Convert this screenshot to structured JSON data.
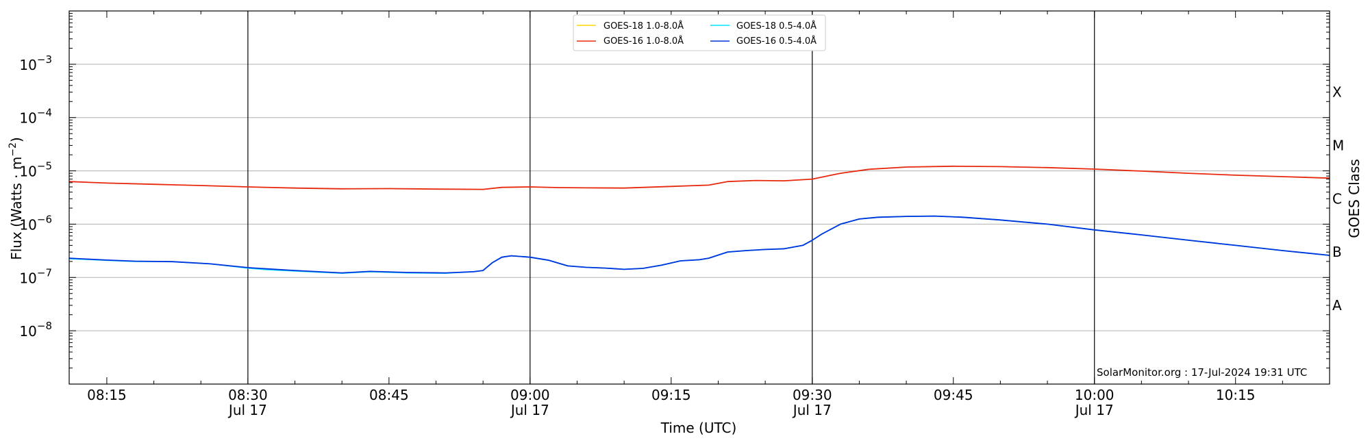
{
  "chart_data": {
    "type": "line",
    "xlabel": "Time (UTC)",
    "ylabel_text": "Flux (Watts · m",
    "ylabel_sup": "−2",
    "ylabel_close": ")",
    "right_label": "GOES Class",
    "y_scale": "log",
    "ylim": [
      1e-09,
      0.01
    ],
    "x_range_minutes": [
      491,
      1761
    ],
    "x_domain": [
      "08:11",
      "10:25"
    ],
    "grid": "horizontal at each decade",
    "legend_position": "top-center",
    "credit": "SolarMonitor.org : 17-Jul-2024 19:31 UTC",
    "y_ticks": [
      {
        "exp": -3,
        "base": "10",
        "sup": "−3"
      },
      {
        "exp": -4,
        "base": "10",
        "sup": "−4"
      },
      {
        "exp": -5,
        "base": "10",
        "sup": "−5"
      },
      {
        "exp": -6,
        "base": "10",
        "sup": "−6"
      },
      {
        "exp": -7,
        "base": "10",
        "sup": "−7"
      },
      {
        "exp": -8,
        "base": "10",
        "sup": "−8"
      }
    ],
    "x_ticks": [
      {
        "t": "08:15",
        "line1": "08:15",
        "line2": "",
        "major": false
      },
      {
        "t": "08:30",
        "line1": "08:30",
        "line2": "Jul 17",
        "major": true
      },
      {
        "t": "08:45",
        "line1": "08:45",
        "line2": "",
        "major": false
      },
      {
        "t": "09:00",
        "line1": "09:00",
        "line2": "Jul 17",
        "major": true
      },
      {
        "t": "09:15",
        "line1": "09:15",
        "line2": "",
        "major": false
      },
      {
        "t": "09:30",
        "line1": "09:30",
        "line2": "Jul 17",
        "major": true
      },
      {
        "t": "09:45",
        "line1": "09:45",
        "line2": "",
        "major": false
      },
      {
        "t": "10:00",
        "line1": "10:00",
        "line2": "Jul 17",
        "major": true
      },
      {
        "t": "10:15",
        "line1": "10:15",
        "line2": "",
        "major": false
      }
    ],
    "goes_classes": [
      {
        "label": "X",
        "flux": 0.0003
      },
      {
        "label": "M",
        "flux": 3e-05
      },
      {
        "label": "C",
        "flux": 3e-06
      },
      {
        "label": "B",
        "flux": 3e-07
      },
      {
        "label": "A",
        "flux": 3e-08
      }
    ],
    "series": [
      {
        "name": "GOES-18 1.0-8.0Å",
        "color": "#FFD700",
        "shown": false,
        "points": []
      },
      {
        "name": "GOES-18 0.5-4.0Å",
        "color": "#00E5FF",
        "shown": true,
        "points": [
          [
            "08:11",
            2.25e-07
          ],
          [
            "08:15",
            2.1e-07
          ],
          [
            "08:18",
            2e-07
          ],
          [
            "08:22",
            1.98e-07
          ],
          [
            "08:26",
            1.8e-07
          ],
          [
            "08:30",
            1.5e-07
          ],
          [
            "08:32",
            1.4e-07
          ],
          [
            "08:35",
            1.32e-07
          ],
          [
            "08:40",
            1.2e-07
          ],
          [
            "08:43",
            1.28e-07
          ],
          [
            "08:47",
            1.22e-07
          ],
          [
            "08:51",
            1.2e-07
          ],
          [
            "08:54",
            1.28e-07
          ],
          [
            "08:55",
            1.35e-07
          ],
          [
            "08:56",
            1.9e-07
          ],
          [
            "08:57",
            2.4e-07
          ],
          [
            "08:58",
            2.55e-07
          ],
          [
            "09:00",
            2.4e-07
          ],
          [
            "09:02",
            2.1e-07
          ],
          [
            "09:04",
            1.65e-07
          ],
          [
            "09:06",
            1.55e-07
          ],
          [
            "09:08",
            1.5e-07
          ],
          [
            "09:10",
            1.42e-07
          ],
          [
            "09:12",
            1.48e-07
          ],
          [
            "09:14",
            1.7e-07
          ],
          [
            "09:16",
            2.05e-07
          ],
          [
            "09:18",
            2.15e-07
          ],
          [
            "09:19",
            2.3e-07
          ],
          [
            "09:21",
            3e-07
          ],
          [
            "09:23",
            3.2e-07
          ],
          [
            "09:25",
            3.35e-07
          ],
          [
            "09:27",
            3.45e-07
          ],
          [
            "09:29",
            4e-07
          ],
          [
            "09:30",
            5e-07
          ],
          [
            "09:31",
            6.5e-07
          ],
          [
            "09:33",
            1e-06
          ],
          [
            "09:35",
            1.25e-06
          ],
          [
            "09:37",
            1.35e-06
          ],
          [
            "09:40",
            1.4e-06
          ],
          [
            "09:43",
            1.42e-06
          ],
          [
            "09:46",
            1.35e-06
          ],
          [
            "09:50",
            1.2e-06
          ],
          [
            "09:55",
            1e-06
          ],
          [
            "10:00",
            7.8e-07
          ],
          [
            "10:05",
            6.3e-07
          ],
          [
            "10:10",
            5e-07
          ],
          [
            "10:15",
            4e-07
          ],
          [
            "10:20",
            3.2e-07
          ],
          [
            "10:25",
            2.6e-07
          ]
        ]
      },
      {
        "name": "GOES-16 1.0-8.0Å",
        "color": "#E8280C",
        "shown": true,
        "points": [
          [
            "08:11",
            6.3e-06
          ],
          [
            "08:15",
            5.9e-06
          ],
          [
            "08:20",
            5.6e-06
          ],
          [
            "08:25",
            5.3e-06
          ],
          [
            "08:30",
            5e-06
          ],
          [
            "08:35",
            4.75e-06
          ],
          [
            "08:40",
            4.6e-06
          ],
          [
            "08:45",
            4.65e-06
          ],
          [
            "08:50",
            4.55e-06
          ],
          [
            "08:55",
            4.5e-06
          ],
          [
            "08:57",
            4.9e-06
          ],
          [
            "09:00",
            5e-06
          ],
          [
            "09:03",
            4.85e-06
          ],
          [
            "09:06",
            4.8e-06
          ],
          [
            "09:10",
            4.75e-06
          ],
          [
            "09:15",
            5.1e-06
          ],
          [
            "09:19",
            5.4e-06
          ],
          [
            "09:21",
            6.3e-06
          ],
          [
            "09:24",
            6.6e-06
          ],
          [
            "09:27",
            6.5e-06
          ],
          [
            "09:30",
            7e-06
          ],
          [
            "09:33",
            9e-06
          ],
          [
            "09:36",
            1.07e-05
          ],
          [
            "09:40",
            1.18e-05
          ],
          [
            "09:45",
            1.22e-05
          ],
          [
            "09:50",
            1.2e-05
          ],
          [
            "09:55",
            1.15e-05
          ],
          [
            "10:00",
            1.08e-05
          ],
          [
            "10:05",
            9.9e-06
          ],
          [
            "10:10",
            9e-06
          ],
          [
            "10:15",
            8.3e-06
          ],
          [
            "10:20",
            7.8e-06
          ],
          [
            "10:25",
            7.3e-06
          ]
        ]
      },
      {
        "name": "GOES-16 0.5-4.0Å",
        "color": "#0033DD",
        "shown": true,
        "points": [
          [
            "08:11",
            2.3e-07
          ],
          [
            "08:15",
            2.12e-07
          ],
          [
            "08:18",
            2.02e-07
          ],
          [
            "08:22",
            1.98e-07
          ],
          [
            "08:26",
            1.8e-07
          ],
          [
            "08:30",
            1.53e-07
          ],
          [
            "08:32",
            1.45e-07
          ],
          [
            "08:35",
            1.35e-07
          ],
          [
            "08:40",
            1.22e-07
          ],
          [
            "08:43",
            1.3e-07
          ],
          [
            "08:47",
            1.24e-07
          ],
          [
            "08:51",
            1.22e-07
          ],
          [
            "08:54",
            1.28e-07
          ],
          [
            "08:55",
            1.35e-07
          ],
          [
            "08:56",
            1.9e-07
          ],
          [
            "08:57",
            2.4e-07
          ],
          [
            "08:58",
            2.55e-07
          ],
          [
            "09:00",
            2.4e-07
          ],
          [
            "09:02",
            2.1e-07
          ],
          [
            "09:04",
            1.65e-07
          ],
          [
            "09:06",
            1.55e-07
          ],
          [
            "09:08",
            1.5e-07
          ],
          [
            "09:10",
            1.42e-07
          ],
          [
            "09:12",
            1.48e-07
          ],
          [
            "09:14",
            1.7e-07
          ],
          [
            "09:16",
            2.05e-07
          ],
          [
            "09:18",
            2.15e-07
          ],
          [
            "09:19",
            2.3e-07
          ],
          [
            "09:21",
            3e-07
          ],
          [
            "09:23",
            3.2e-07
          ],
          [
            "09:25",
            3.35e-07
          ],
          [
            "09:27",
            3.45e-07
          ],
          [
            "09:29",
            4e-07
          ],
          [
            "09:30",
            5e-07
          ],
          [
            "09:31",
            6.5e-07
          ],
          [
            "09:33",
            1e-06
          ],
          [
            "09:35",
            1.25e-06
          ],
          [
            "09:37",
            1.35e-06
          ],
          [
            "09:40",
            1.4e-06
          ],
          [
            "09:43",
            1.42e-06
          ],
          [
            "09:46",
            1.35e-06
          ],
          [
            "09:50",
            1.2e-06
          ],
          [
            "09:55",
            1e-06
          ],
          [
            "10:00",
            7.8e-07
          ],
          [
            "10:05",
            6.3e-07
          ],
          [
            "10:10",
            5e-07
          ],
          [
            "10:15",
            4e-07
          ],
          [
            "10:20",
            3.2e-07
          ],
          [
            "10:25",
            2.6e-07
          ]
        ]
      }
    ]
  }
}
